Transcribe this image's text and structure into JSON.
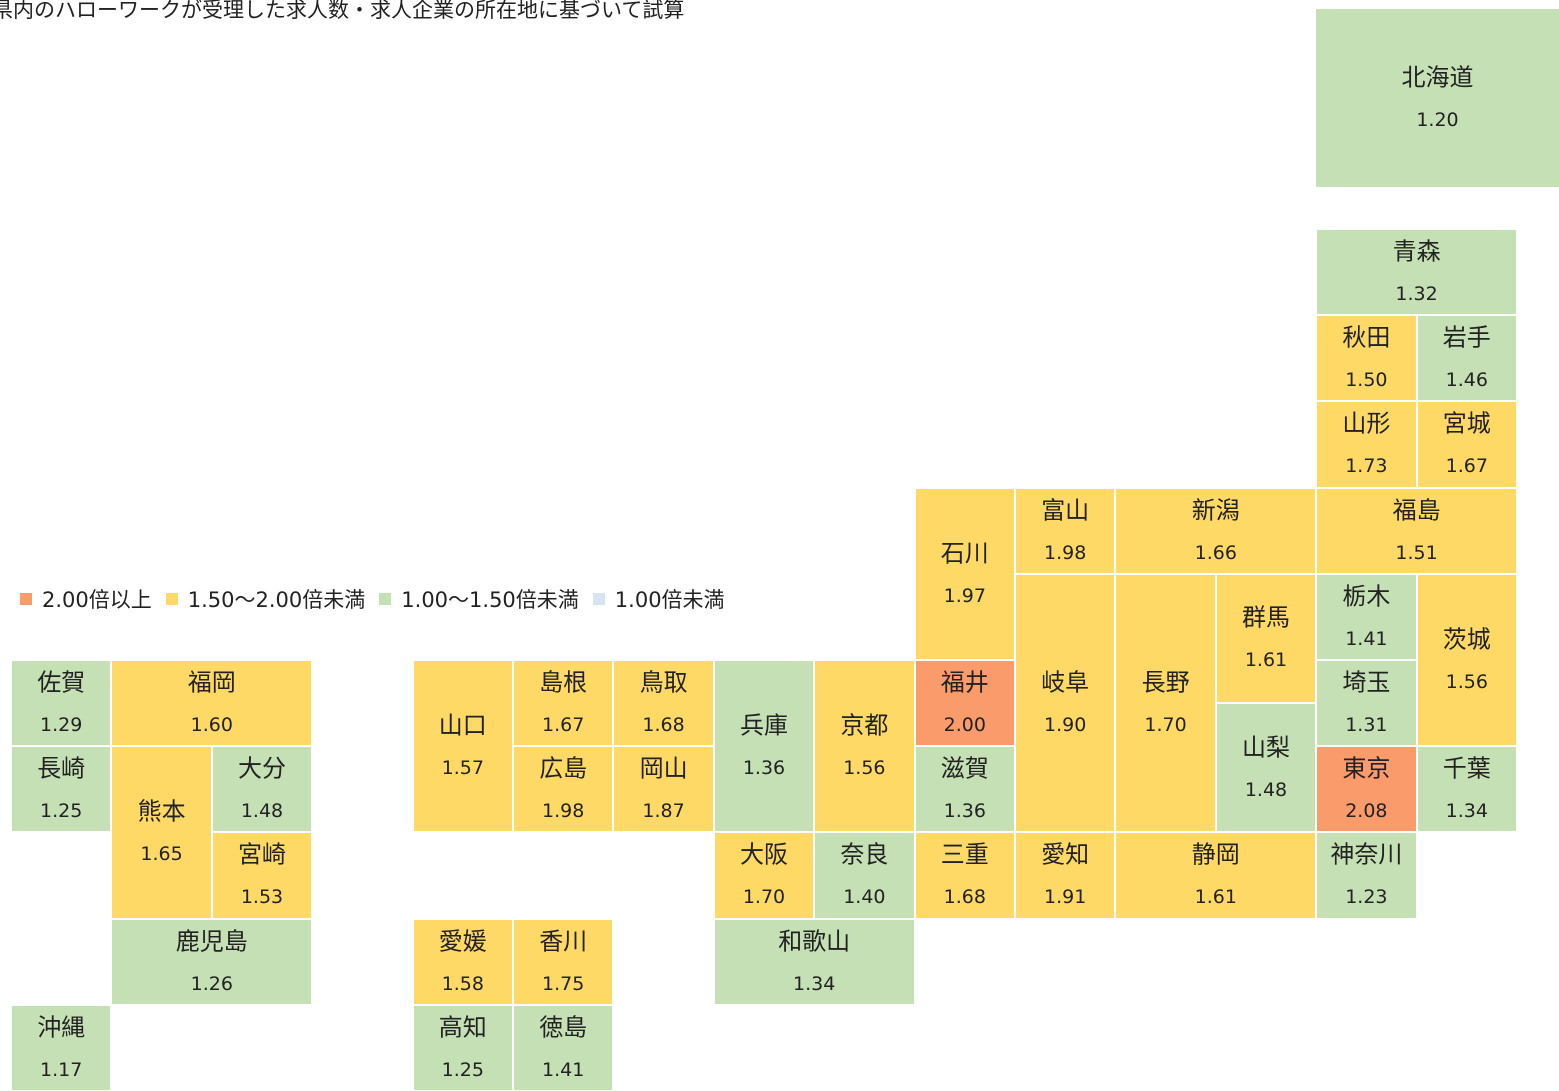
{
  "title": "県内のハローワークが受理した求人数・求人企業の所在地に基づいて試算",
  "legend": [
    {
      "label": "2.00倍以上",
      "color": "#f99b6b",
      "min": 2
    },
    {
      "label": "1.50～2.00倍未満",
      "color": "#fed966",
      "min": 1.5
    },
    {
      "label": "1.00～1.50倍未満",
      "color": "#c5e0b4",
      "min": 1
    },
    {
      "label": "1.00倍未満",
      "color": "#dae3f3"
    }
  ],
  "prefectures": [
    {
      "name": "北海道",
      "value": 1.2,
      "label": "1.20"
    },
    {
      "name": "青森",
      "value": 1.32,
      "label": "1.32"
    },
    {
      "name": "秋田",
      "value": 1.5,
      "label": "1.50"
    },
    {
      "name": "岩手",
      "value": 1.46,
      "label": "1.46"
    },
    {
      "name": "山形",
      "value": 1.73,
      "label": "1.73"
    },
    {
      "name": "宮城",
      "value": 1.67,
      "label": "1.67"
    },
    {
      "name": "石川",
      "value": 1.97,
      "label": "1.97"
    },
    {
      "name": "富山",
      "value": 1.98,
      "label": "1.98"
    },
    {
      "name": "新潟",
      "value": 1.66,
      "label": "1.66"
    },
    {
      "name": "福島",
      "value": 1.51,
      "label": "1.51"
    },
    {
      "name": "岐阜",
      "value": 1.9,
      "label": "1.90"
    },
    {
      "name": "長野",
      "value": 1.7,
      "label": "1.70"
    },
    {
      "name": "群馬",
      "value": 1.61,
      "label": "1.61"
    },
    {
      "name": "栃木",
      "value": 1.41,
      "label": "1.41"
    },
    {
      "name": "茨城",
      "value": 1.56,
      "label": "1.56"
    },
    {
      "name": "埼玉",
      "value": 1.31,
      "label": "1.31"
    },
    {
      "name": "山梨",
      "value": 1.48,
      "label": "1.48"
    },
    {
      "name": "福井",
      "value": 2.0,
      "label": "2.00"
    },
    {
      "name": "滋賀",
      "value": 1.36,
      "label": "1.36"
    },
    {
      "name": "東京",
      "value": 2.08,
      "label": "2.08"
    },
    {
      "name": "千葉",
      "value": 1.34,
      "label": "1.34"
    },
    {
      "name": "兵庫",
      "value": 1.36,
      "label": "1.36"
    },
    {
      "name": "京都",
      "value": 1.56,
      "label": "1.56"
    },
    {
      "name": "山口",
      "value": 1.57,
      "label": "1.57"
    },
    {
      "name": "島根",
      "value": 1.67,
      "label": "1.67"
    },
    {
      "name": "鳥取",
      "value": 1.68,
      "label": "1.68"
    },
    {
      "name": "広島",
      "value": 1.98,
      "label": "1.98"
    },
    {
      "name": "岡山",
      "value": 1.87,
      "label": "1.87"
    },
    {
      "name": "佐賀",
      "value": 1.29,
      "label": "1.29"
    },
    {
      "name": "福岡",
      "value": 1.6,
      "label": "1.60"
    },
    {
      "name": "長崎",
      "value": 1.25,
      "label": "1.25"
    },
    {
      "name": "熊本",
      "value": 1.65,
      "label": "1.65"
    },
    {
      "name": "大分",
      "value": 1.48,
      "label": "1.48"
    },
    {
      "name": "宮崎",
      "value": 1.53,
      "label": "1.53"
    },
    {
      "name": "鹿児島",
      "value": 1.26,
      "label": "1.26"
    },
    {
      "name": "沖縄",
      "value": 1.17,
      "label": "1.17"
    },
    {
      "name": "大阪",
      "value": 1.7,
      "label": "1.70"
    },
    {
      "name": "奈良",
      "value": 1.4,
      "label": "1.40"
    },
    {
      "name": "三重",
      "value": 1.68,
      "label": "1.68"
    },
    {
      "name": "愛知",
      "value": 1.91,
      "label": "1.91"
    },
    {
      "name": "静岡",
      "value": 1.61,
      "label": "1.61"
    },
    {
      "name": "神奈川",
      "value": 1.23,
      "label": "1.23"
    },
    {
      "name": "和歌山",
      "value": 1.34,
      "label": "1.34"
    },
    {
      "name": "愛媛",
      "value": 1.58,
      "label": "1.58"
    },
    {
      "name": "香川",
      "value": 1.75,
      "label": "1.75"
    },
    {
      "name": "高知",
      "value": 1.25,
      "label": "1.25"
    },
    {
      "name": "徳島",
      "value": 1.41,
      "label": "1.41"
    }
  ]
}
